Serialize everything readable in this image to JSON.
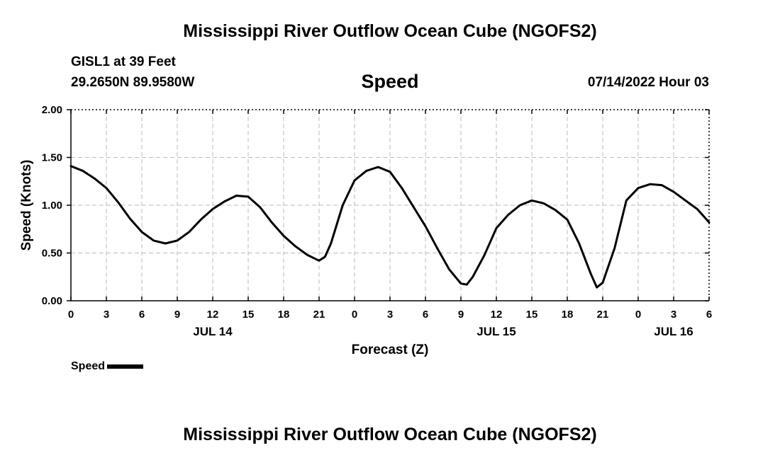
{
  "header": {
    "title": "Mississippi River Outflow Ocean Cube (NGOFS2)",
    "station": "GISL1 at 39 Feet",
    "coords": "29.2650N  89.9580W",
    "variable": "Speed",
    "datetime": "07/14/2022 Hour 03"
  },
  "footer": {
    "title": "Mississippi River Outflow Ocean Cube (NGOFS2)"
  },
  "legend": {
    "label": "Speed"
  },
  "chart_data": {
    "type": "line",
    "xlabel": "Forecast (Z)",
    "ylabel": "Speed (Knots)",
    "xlim": [
      0,
      54
    ],
    "ylim": [
      0,
      2.0
    ],
    "grid": true,
    "x_ticks": [
      0,
      3,
      6,
      9,
      12,
      15,
      18,
      21,
      24,
      27,
      30,
      33,
      36,
      39,
      42,
      45,
      48,
      51,
      54
    ],
    "x_tick_labels": [
      "0",
      "3",
      "6",
      "9",
      "12",
      "15",
      "18",
      "21",
      "0",
      "3",
      "6",
      "9",
      "12",
      "15",
      "18",
      "21",
      "0",
      "3",
      "6"
    ],
    "y_ticks": [
      0,
      0.5,
      1.0,
      1.5,
      2.0
    ],
    "y_tick_labels": [
      "0.00",
      "0.50",
      "1.00",
      "1.50",
      "2.00"
    ],
    "day_labels": [
      {
        "x": 12,
        "label": "JUL 14"
      },
      {
        "x": 36,
        "label": "JUL 15"
      },
      {
        "x": 60,
        "label": "JUL 16"
      }
    ],
    "series": [
      {
        "name": "Speed",
        "color": "#000000",
        "x": [
          0,
          1,
          2,
          3,
          4,
          5,
          6,
          7,
          8,
          9,
          10,
          11,
          12,
          13,
          14,
          15,
          16,
          17,
          18,
          19,
          20,
          21,
          21.5,
          22,
          23,
          24,
          25,
          26,
          27,
          28,
          29,
          30,
          31,
          32,
          33,
          33.5,
          34,
          35,
          36,
          37,
          38,
          39,
          40,
          41,
          42,
          43,
          44,
          44.5,
          45,
          46,
          47,
          48,
          49,
          50,
          51,
          52,
          53,
          54
        ],
        "y": [
          1.41,
          1.36,
          1.28,
          1.18,
          1.03,
          0.86,
          0.72,
          0.63,
          0.6,
          0.63,
          0.72,
          0.85,
          0.96,
          1.04,
          1.1,
          1.09,
          0.98,
          0.82,
          0.68,
          0.57,
          0.48,
          0.42,
          0.46,
          0.6,
          1.0,
          1.26,
          1.36,
          1.4,
          1.35,
          1.18,
          0.98,
          0.78,
          0.55,
          0.33,
          0.18,
          0.17,
          0.25,
          0.48,
          0.76,
          0.9,
          1.0,
          1.05,
          1.02,
          0.95,
          0.85,
          0.6,
          0.28,
          0.14,
          0.19,
          0.55,
          1.05,
          1.18,
          1.22,
          1.21,
          1.14,
          1.05,
          0.96,
          0.82
        ]
      }
    ]
  }
}
